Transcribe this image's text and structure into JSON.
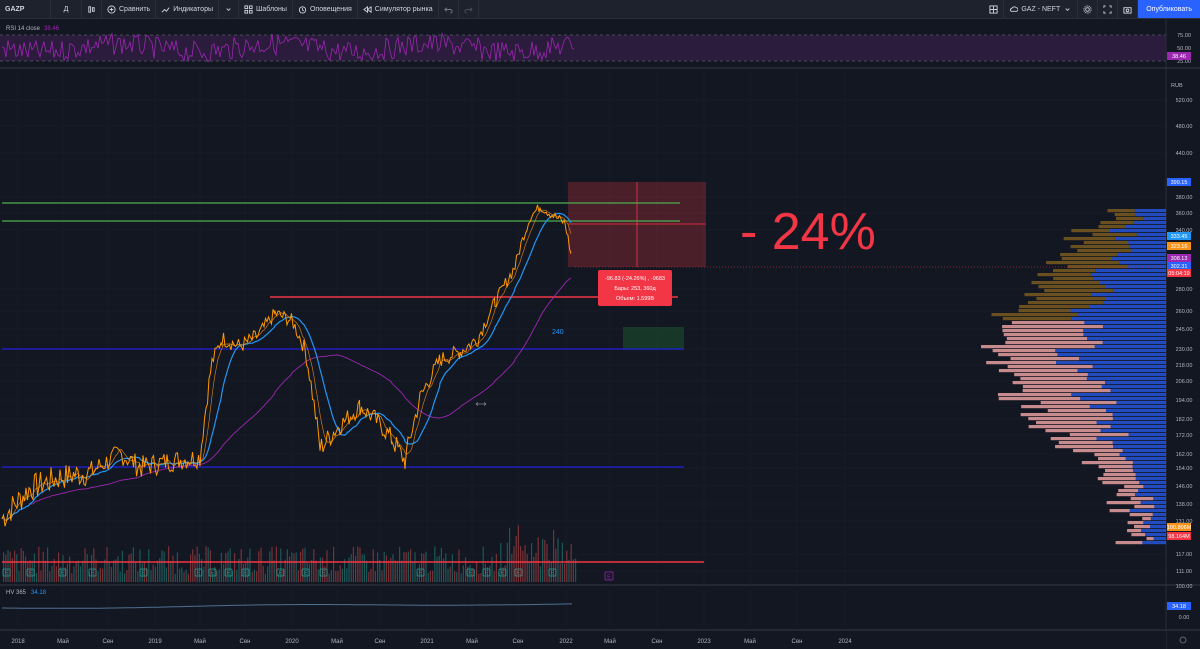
{
  "toolbar": {
    "symbol": "GAZP",
    "interval": "Д",
    "compare": "Сравнить",
    "indicators": "Индикаторы",
    "templates": "Шаблоны",
    "alerts": "Оповещения",
    "replay": "Симулятор рынка",
    "layout_name": "GAZ - NEFT",
    "publish": "Опубликовать"
  },
  "rsi": {
    "legend": "RSI 14 close",
    "value": "38.46",
    "ticks": [
      "75.00",
      "50.00",
      "25.00"
    ],
    "current_label": "38.46"
  },
  "main": {
    "currency": "RUB",
    "price_ticks": [
      "520.00",
      "480.00",
      "440.00",
      "399.15",
      "380.00",
      "360.00",
      "340.00",
      "323.16",
      "302.31",
      "280.00",
      "260.00",
      "245.00",
      "230.00",
      "218.00",
      "206.00",
      "194.00",
      "182.00",
      "172.00",
      "162.00",
      "154.00",
      "146.00",
      "138.00",
      "131.00",
      "117.00",
      "111.00"
    ],
    "badges": [
      {
        "text": "399.15",
        "color": "#2962ff"
      },
      {
        "text": "333.45",
        "color": "#2196f3"
      },
      {
        "text": "323.16",
        "color": "#f7931a"
      },
      {
        "text": "308.13",
        "color": "#9c27b0"
      },
      {
        "text": "302.31",
        "color": "#2962ff"
      },
      {
        "text": "05:04:19",
        "color": "#f23645"
      },
      {
        "text": "100.806M",
        "color": "#f7931a"
      },
      {
        "text": "98.164M",
        "color": "#f23645"
      }
    ],
    "annotation_big": "- 24%",
    "measure_line1": "-96.83 (-24.26%) , -9683",
    "measure_line2": "Бары: 253, 360д",
    "measure_line3": "Объем: 1.599B",
    "level_label": "240",
    "earnings_marker": "E"
  },
  "hv": {
    "legend": "HV 365",
    "value": "34.18",
    "ticks": [
      "100.00",
      "0.00"
    ],
    "current_label": "34.18"
  },
  "time_axis": [
    "2018",
    "Май",
    "Сен",
    "2019",
    "Май",
    "Сен",
    "2020",
    "Май",
    "Сен",
    "2021",
    "Май",
    "Сен",
    "2022",
    "Май",
    "Сен",
    "2023",
    "Май",
    "Сен",
    "2024"
  ],
  "colors": {
    "background": "#131722",
    "ma_fast": "#f7931a",
    "ma_mid": "#2196f3",
    "ma_slow": "#9c27b0",
    "price": "#ff9800",
    "support_blue": "#1f1fbf",
    "resistance_green": "#4caf50",
    "level_red": "#f23645",
    "volume_profile_up": "#2962ff",
    "volume_profile_down": "#e8a0a0"
  }
}
